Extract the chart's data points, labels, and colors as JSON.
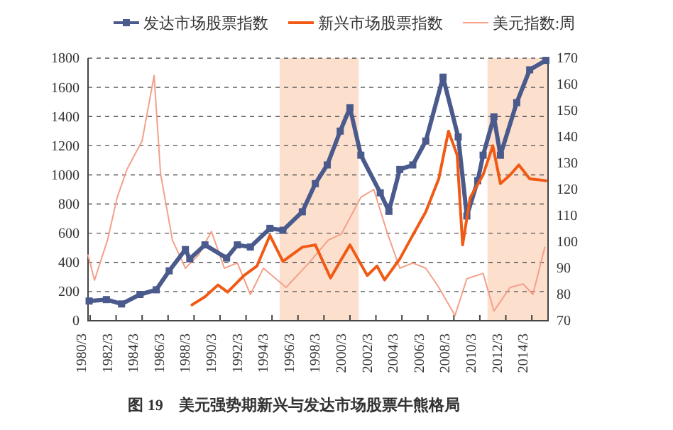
{
  "chart_data": {
    "type": "line",
    "title": "图 19　美元强势期新兴与发达市场股票牛熊格局",
    "xlim": [
      "1980-01",
      "2015-06"
    ],
    "xticks": [
      {
        "value": "1980-03",
        "label": "1980/3"
      },
      {
        "value": "1982-03",
        "label": "1982/3"
      },
      {
        "value": "1984-03",
        "label": "1984/3"
      },
      {
        "value": "1986-03",
        "label": "1986/3"
      },
      {
        "value": "1988-03",
        "label": "1988/3"
      },
      {
        "value": "1990-03",
        "label": "1990/3"
      },
      {
        "value": "1992-03",
        "label": "1992/3"
      },
      {
        "value": "1994-03",
        "label": "1994/3"
      },
      {
        "value": "1996-03",
        "label": "1996/3"
      },
      {
        "value": "1998-03",
        "label": "1998/3"
      },
      {
        "value": "2000-03",
        "label": "2000/3"
      },
      {
        "value": "2002-03",
        "label": "2002/3"
      },
      {
        "value": "2004-03",
        "label": "2004/3"
      },
      {
        "value": "2006-03",
        "label": "2006/3"
      },
      {
        "value": "2008-03",
        "label": "2008/3"
      },
      {
        "value": "2010-03",
        "label": "2010/3"
      },
      {
        "value": "2012-03",
        "label": "2012/3"
      },
      {
        "value": "2014-03",
        "label": "2014/3"
      }
    ],
    "ylim": [
      0,
      1800
    ],
    "yticks": [
      0,
      200,
      400,
      600,
      800,
      1000,
      1200,
      1400,
      1600,
      1800
    ],
    "y2lim": [
      70,
      170
    ],
    "y2ticks": [
      70,
      80,
      90,
      100,
      110,
      120,
      130,
      140,
      150,
      160,
      170
    ],
    "grid": "y",
    "legend": "top",
    "bands": [
      {
        "axis": "x",
        "from": "1994-10",
        "to": "2000-11",
        "color": "#fbd9c4"
      },
      {
        "axis": "x",
        "from": "2010-10",
        "to": "2015-06",
        "color": "#fbd9c4"
      }
    ],
    "series": [
      {
        "name": "发达市场股票指数",
        "color": "#4a5a8c",
        "marker": "square",
        "x": [
          "1980-02",
          "1981-06",
          "1982-08",
          "1984-01",
          "1985-04",
          "1986-04",
          "1987-07",
          "1987-11",
          "1989-01",
          "1990-09",
          "1991-07",
          "1992-07",
          "1994-01",
          "1995-01",
          "1996-07",
          "1997-07",
          "1998-06",
          "1999-06",
          "2000-03",
          "2001-01",
          "2002-07",
          "2003-03",
          "2004-01",
          "2005-01",
          "2006-01",
          "2007-05",
          "2008-07",
          "2009-03",
          "2010-01",
          "2010-06",
          "2011-04",
          "2011-10",
          "2013-01",
          "2014-01",
          "2015-04"
        ],
        "values": [
          135,
          145,
          115,
          180,
          212,
          342,
          488,
          424,
          520,
          430,
          520,
          505,
          633,
          620,
          747,
          940,
          1068,
          1300,
          1460,
          1135,
          877,
          750,
          1037,
          1068,
          1232,
          1670,
          1260,
          718,
          960,
          1135,
          1398,
          1135,
          1495,
          1720,
          1785
        ]
      },
      {
        "name": "新兴市场股票指数",
        "color": "#f05a14",
        "x": [
          "1988-01",
          "1989-01",
          "1990-01",
          "1990-10",
          "1992-01",
          "1993-01",
          "1994-01",
          "1995-01",
          "1996-07",
          "1997-07",
          "1998-09",
          "1999-06",
          "2000-03",
          "2001-07",
          "2002-04",
          "2002-11",
          "2004-01",
          "2005-01",
          "2006-01",
          "2007-01",
          "2007-10",
          "2008-06",
          "2008-11",
          "2009-06",
          "2010-06",
          "2011-03",
          "2011-10",
          "2012-07",
          "2013-03",
          "2014-01",
          "2015-04"
        ],
        "values": [
          109,
          164,
          245,
          196,
          310,
          375,
          585,
          407,
          504,
          520,
          293,
          407,
          520,
          310,
          375,
          280,
          424,
          587,
          747,
          973,
          1300,
          1135,
          520,
          843,
          1000,
          1200,
          940,
          1000,
          1068,
          973,
          960
        ]
      },
      {
        "name": "美元指数:周",
        "color": "#f4a08a",
        "axis": "y2",
        "x": [
          "1980-01",
          "1980-07",
          "1981-07",
          "1982-04",
          "1983-01",
          "1984-03",
          "1985-02",
          "1985-08",
          "1986-07",
          "1987-07",
          "1988-07",
          "1989-07",
          "1990-07",
          "1991-07",
          "1992-07",
          "1993-07",
          "1995-04",
          "1997-01",
          "1998-07",
          "1999-07",
          "2001-01",
          "2002-01",
          "2003-01",
          "2004-01",
          "2005-01",
          "2006-01",
          "2007-01",
          "2008-04",
          "2009-03",
          "2010-06",
          "2011-04",
          "2012-07",
          "2013-07",
          "2014-04",
          "2015-03"
        ],
        "values": [
          95,
          85.4,
          100.7,
          117,
          127.7,
          138.5,
          163.4,
          126,
          100.7,
          90,
          95,
          104,
          90,
          92,
          80,
          90,
          82.7,
          92,
          100.7,
          103,
          117,
          120,
          104,
          90,
          92,
          90,
          82.7,
          72,
          86,
          88,
          73.7,
          82.7,
          84,
          80,
          98
        ]
      }
    ]
  }
}
